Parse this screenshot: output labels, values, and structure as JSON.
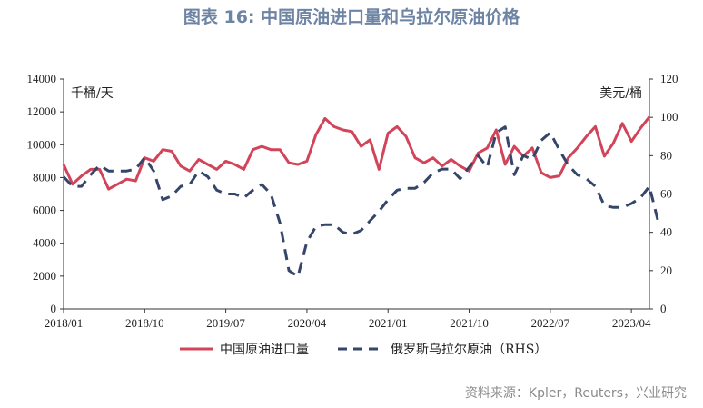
{
  "title": "图表 16: 中国原油进口量和乌拉尔原油价格",
  "source": "资料来源：Kpler，Reuters，兴业研究",
  "chart_data": {
    "type": "line",
    "left_unit": "千桶/天",
    "right_unit": "美元/桶",
    "y_left": {
      "min": 0,
      "max": 14000,
      "ticks": [
        0,
        2000,
        4000,
        6000,
        8000,
        10000,
        12000,
        14000
      ]
    },
    "y_right": {
      "min": 0,
      "max": 120,
      "ticks": [
        0,
        20,
        40,
        60,
        80,
        100,
        120
      ]
    },
    "x_tick_labels": [
      "2018/01",
      "2018/10",
      "2019/07",
      "2020/04",
      "2021/01",
      "2021/10",
      "2022/07",
      "2023/04"
    ],
    "x_tick_index": [
      0,
      9,
      18,
      27,
      36,
      45,
      54,
      63
    ],
    "grid": false,
    "legend_position": "bottom",
    "series": [
      {
        "name": "中国原油进口量",
        "axis": "left",
        "color": "#d24459",
        "style": "solid",
        "values": [
          8800,
          7600,
          8100,
          8500,
          8500,
          7300,
          7600,
          7900,
          7800,
          9200,
          9000,
          9700,
          9600,
          8700,
          8400,
          9100,
          8800,
          8500,
          9000,
          8800,
          8500,
          9700,
          9900,
          9700,
          9700,
          8900,
          8800,
          9000,
          10600,
          11600,
          11100,
          10900,
          10800,
          9900,
          10300,
          8500,
          10700,
          11100,
          10500,
          9200,
          8900,
          9200,
          8700,
          9100,
          8700,
          8400,
          9500,
          9800,
          10900,
          8800,
          9900,
          9300,
          9800,
          8300,
          8000,
          8100,
          9200,
          9800,
          10500,
          11100,
          9300,
          10100,
          11300,
          10200,
          11000,
          11700
        ]
      },
      {
        "name": "俄罗斯乌拉尔原油（RHS）",
        "axis": "right",
        "color": "#35466a",
        "style": "dashed",
        "values": [
          69,
          64,
          64,
          70,
          75,
          72,
          72,
          72,
          73,
          79,
          72,
          57,
          59,
          64,
          65,
          72,
          69,
          62,
          60,
          60,
          58,
          62,
          65,
          60,
          45,
          20,
          17,
          35,
          43,
          44,
          44,
          40,
          39,
          41,
          46,
          51,
          57,
          62,
          63,
          63,
          66,
          71,
          73,
          73,
          68,
          74,
          80,
          74,
          92,
          95,
          70,
          80,
          78,
          88,
          92,
          83,
          75,
          70,
          68,
          64,
          54,
          53,
          53,
          55,
          58,
          64,
          45
        ]
      }
    ]
  }
}
